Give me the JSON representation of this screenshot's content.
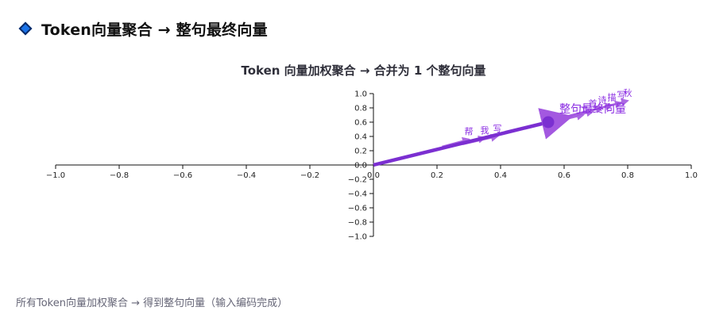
{
  "header": {
    "title": "Token向量聚合 → 整句最终向量"
  },
  "chart_data": {
    "type": "vector",
    "title": "Token 向量加权聚合 → 合并为 1 个整句向量",
    "x_ticks": [
      "−1.0",
      "−0.8",
      "−0.6",
      "−0.4",
      "−0.2",
      "0.0",
      "0.2",
      "0.4",
      "0.6",
      "0.8",
      "1.0"
    ],
    "y_ticks": [
      "1.0",
      "0.8",
      "0.6",
      "0.4",
      "0.2",
      "0.0",
      "−0.2",
      "−0.4",
      "−0.6",
      "−0.8",
      "−1.0"
    ],
    "xlim": [
      -1,
      1
    ],
    "ylim": [
      -1,
      1
    ],
    "tokens": [
      {
        "label": "帮",
        "x": 0.3,
        "y": 0.36
      },
      {
        "label": "我",
        "x": 0.35,
        "y": 0.38
      },
      {
        "label": "写",
        "x": 0.39,
        "y": 0.4
      },
      {
        "label": "一",
        "x": 0.66,
        "y": 0.7
      },
      {
        "label": "首",
        "x": 0.69,
        "y": 0.75
      },
      {
        "label": "诗",
        "x": 0.72,
        "y": 0.8
      },
      {
        "label": "描",
        "x": 0.75,
        "y": 0.84
      },
      {
        "label": "写",
        "x": 0.78,
        "y": 0.87
      },
      {
        "label": "秋",
        "x": 0.8,
        "y": 0.9
      }
    ],
    "sentence_vector": {
      "label": "整句最终向量",
      "x": 0.55,
      "y": 0.6
    },
    "colors": {
      "token": "#a358e0",
      "sentence": "#7b2fd1",
      "label": "#8a2be2"
    }
  },
  "caption": "所有Token向量加权聚合 → 得到整句向量（输入编码完成）"
}
